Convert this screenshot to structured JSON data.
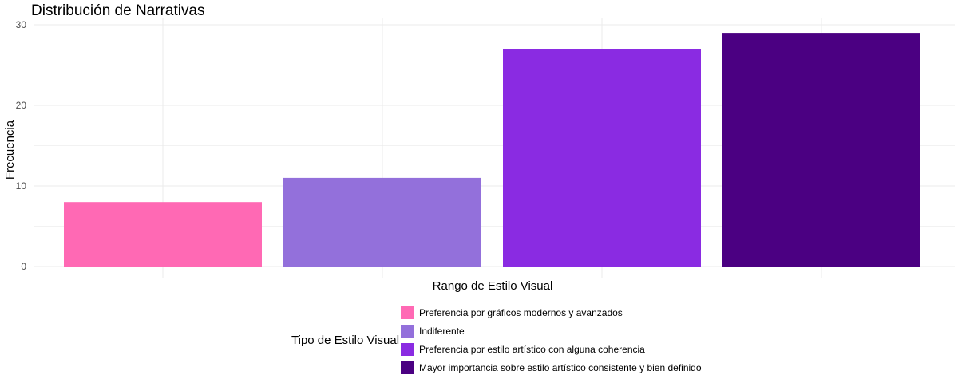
{
  "chart_data": {
    "type": "bar",
    "title": "Distribución de Narrativas",
    "xlabel": "Rango de Estilo Visual",
    "ylabel": "Frecuencia",
    "ylim": [
      0,
      30
    ],
    "yticks": [
      0,
      10,
      20,
      30
    ],
    "grid": true,
    "categories": [
      "Preferencia por gráficos modernos y avanzados",
      "Indiferente",
      "Preferencia por estilo artístico con alguna coherencia",
      "Mayor importancia sobre estilo artístico consistente y bien definido"
    ],
    "values": [
      8,
      11,
      27,
      29
    ],
    "colors": [
      "#ff69b4",
      "#9370db",
      "#8a2be2",
      "#4b0082"
    ],
    "legend": {
      "title": "Tipo de Estilo Visual",
      "placement": "bottom",
      "entries": [
        "Preferencia por gráficos modernos y avanzados",
        "Indiferente",
        "Preferencia por estilo artístico con alguna coherencia",
        "Mayor importancia sobre estilo artístico consistente y bien definido"
      ]
    }
  }
}
